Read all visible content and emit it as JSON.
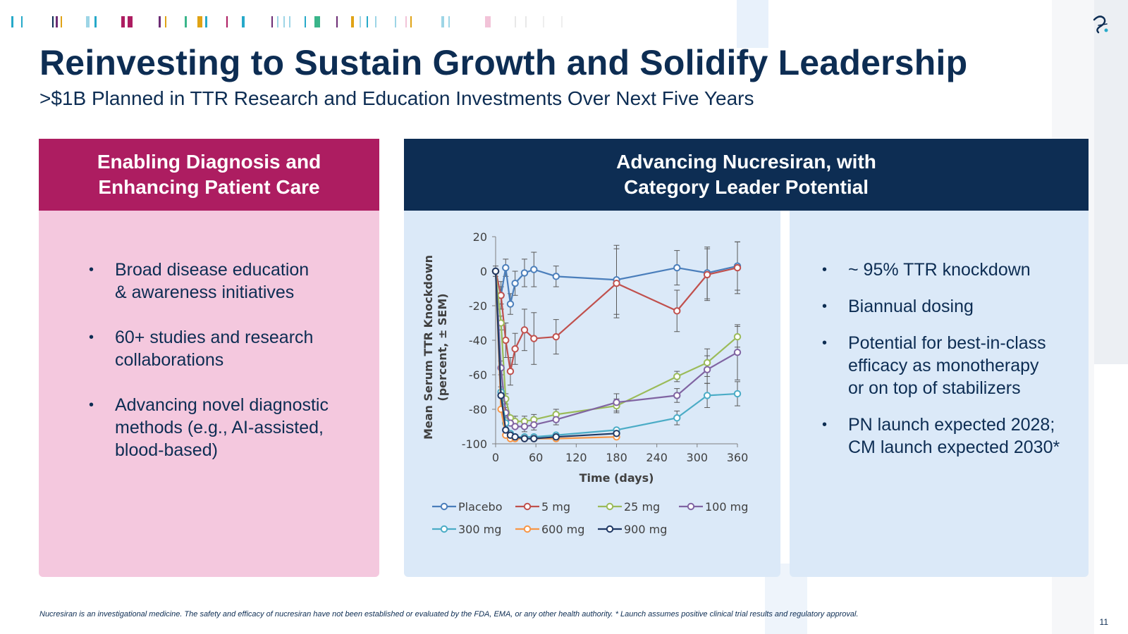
{
  "header": {
    "title": "Reinvesting to Sustain Growth and Solidify Leadership",
    "subtitle": ">$1B Planned in TTR Research and Education Investments Over Next Five Years"
  },
  "left_panel": {
    "heading_line1": "Enabling Diagnosis and",
    "heading_line2": "Enhancing Patient Care",
    "bullets": [
      {
        "line1": "Broad disease education",
        "line2": "& awareness initiatives"
      },
      {
        "line1": "60+ studies and research",
        "line2": "collaborations"
      },
      {
        "line1": "Advancing novel diagnostic",
        "line2": "methods (e.g., AI-assisted,",
        "line3": "blood-based)"
      }
    ]
  },
  "right_panel": {
    "heading_line1": "Advancing Nucresiran, with",
    "heading_line2": "Category Leader Potential",
    "bullets": [
      {
        "line1": "~ 95% TTR knockdown"
      },
      {
        "line1": "Biannual dosing"
      },
      {
        "line1": "Potential for best-in-class",
        "line2": "efficacy as monotherapy",
        "line3": "or on top of stabilizers"
      },
      {
        "line1": "PN launch expected 2028;",
        "line2": "CM launch expected 2030*"
      }
    ]
  },
  "chart_data": {
    "type": "line",
    "xlabel": "Time (days)",
    "ylabel_line1": "Mean Serum TTR Knockdown",
    "ylabel_line2": "(percent, ± SEM)",
    "xlim": [
      0,
      360
    ],
    "ylim": [
      -100,
      20
    ],
    "xticks": [
      0,
      60,
      120,
      180,
      240,
      300,
      360
    ],
    "yticks": [
      20,
      0,
      -20,
      -40,
      -60,
      -80,
      -100
    ],
    "grid": false,
    "legend_position": "bottom",
    "series": [
      {
        "name": "Placebo",
        "color": "#4a7ebb",
        "x": [
          0,
          8,
          15,
          22,
          29,
          43,
          57,
          90,
          180,
          270,
          315,
          360
        ],
        "y": [
          0,
          -14,
          2,
          -19,
          -7,
          -1,
          1,
          -3,
          -5,
          2,
          -1,
          3
        ],
        "err": [
          3,
          5,
          5,
          6,
          7,
          8,
          10,
          6,
          20,
          10,
          15,
          14
        ]
      },
      {
        "name": "5 mg",
        "color": "#c0504d",
        "x": [
          0,
          8,
          15,
          22,
          29,
          43,
          57,
          90,
          180,
          270,
          315,
          360
        ],
        "y": [
          0,
          -14,
          -40,
          -58,
          -45,
          -34,
          -39,
          -38,
          -7,
          -23,
          -2,
          2
        ],
        "err": [
          2,
          8,
          10,
          8,
          9,
          12,
          15,
          10,
          20,
          12,
          15,
          15
        ]
      },
      {
        "name": "25 mg",
        "color": "#9bbb59",
        "x": [
          0,
          8,
          15,
          22,
          29,
          43,
          57,
          90,
          180,
          270,
          315,
          360
        ],
        "y": [
          0,
          -30,
          -74,
          -85,
          -87,
          -87,
          -86,
          -83,
          -78,
          -61,
          -53,
          -38
        ],
        "err": [
          1,
          4,
          3,
          2,
          3,
          3,
          3,
          3,
          4,
          3,
          8,
          6
        ]
      },
      {
        "name": "100 mg",
        "color": "#8064a2",
        "x": [
          0,
          8,
          15,
          22,
          29,
          43,
          57,
          90,
          180,
          270,
          315,
          360
        ],
        "y": [
          0,
          -56,
          -82,
          -88,
          -90,
          -90,
          -89,
          -86,
          -76,
          -72,
          -57,
          -47
        ],
        "err": [
          1,
          4,
          3,
          2,
          2,
          3,
          3,
          3,
          5,
          4,
          8,
          16
        ]
      },
      {
        "name": "300 mg",
        "color": "#4bacc6",
        "x": [
          0,
          8,
          15,
          22,
          29,
          43,
          57,
          90,
          180,
          270,
          315,
          360
        ],
        "y": [
          0,
          -70,
          -88,
          -94,
          -96,
          -96,
          -96,
          -95,
          -92,
          -85,
          -72,
          -71
        ],
        "err": [
          1,
          3,
          2,
          1,
          1,
          1,
          1,
          1,
          2,
          4,
          7,
          7
        ]
      },
      {
        "name": "600 mg",
        "color": "#f79646",
        "x": [
          0,
          8,
          15,
          22,
          29,
          43,
          57,
          90,
          180
        ],
        "y": [
          0,
          -80,
          -95,
          -97,
          -97,
          -97,
          -97,
          -97,
          -96
        ],
        "err": [
          1,
          2,
          1,
          1,
          1,
          1,
          1,
          1,
          1
        ]
      },
      {
        "name": "900 mg",
        "color": "#1f3864",
        "x": [
          0,
          8,
          15,
          22,
          29,
          43,
          57,
          90,
          180
        ],
        "y": [
          0,
          -72,
          -92,
          -95,
          -96,
          -97,
          -97,
          -96,
          -94
        ],
        "err": [
          1,
          2,
          1,
          1,
          1,
          1,
          1,
          1,
          1
        ]
      }
    ]
  },
  "footnote": "Nucresiran is an investigational medicine. The safety and efficacy of nucresiran have not been established or evaluated by the FDA, EMA, or any other health authority. * Launch assumes positive clinical trial results and regulatory approval.",
  "page_number": "11",
  "colors": {
    "navy": "#0d2d53",
    "magenta": "#ad1d61",
    "pink_panel": "#f4c8de",
    "light_blue_panel": "#dbe9f8"
  },
  "icons": {
    "logo": "alnylam-logo-icon"
  }
}
